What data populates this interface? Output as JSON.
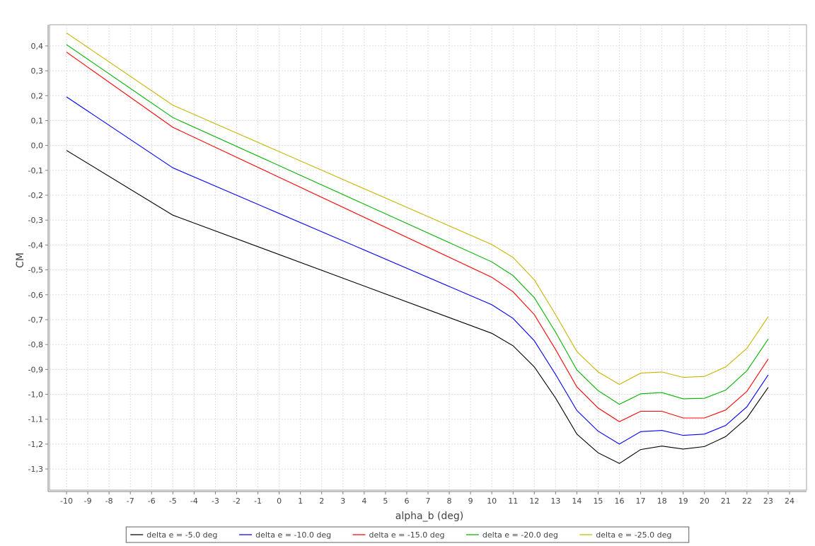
{
  "chart_data": {
    "type": "line",
    "title": "",
    "xlabel": "alpha_b (deg)",
    "ylabel": "CM",
    "xlim": [
      -10.8,
      24.8
    ],
    "ylim": [
      -1.385,
      0.485
    ],
    "grid": true,
    "legend_position": "bottom-center",
    "x_ticks": [
      "-10",
      "-9",
      "-8",
      "-7",
      "-6",
      "-5",
      "-4",
      "-3",
      "-2",
      "-1",
      "0",
      "1",
      "2",
      "3",
      "4",
      "5",
      "6",
      "7",
      "8",
      "9",
      "10",
      "11",
      "12",
      "13",
      "14",
      "15",
      "16",
      "17",
      "18",
      "19",
      "20",
      "21",
      "22",
      "23",
      "24"
    ],
    "y_ticks": [
      "0,4",
      "0,3",
      "0,2",
      "0,1",
      "0,0",
      "-0,1",
      "-0,2",
      "-0,3",
      "-0,4",
      "-0,5",
      "-0,6",
      "-0,7",
      "-0,8",
      "-0,9",
      "-1,0",
      "-1,1",
      "-1,2",
      "-1,3"
    ],
    "x": [
      -10,
      -5,
      10,
      11,
      12,
      13,
      14,
      15,
      16,
      17,
      18,
      19,
      20,
      21,
      22,
      23
    ],
    "series": [
      {
        "name": "delta e = -5.0 deg",
        "color": "#000000",
        "values": [
          -0.02,
          -0.28,
          -0.755,
          -0.805,
          -0.89,
          -1.015,
          -1.16,
          -1.235,
          -1.278,
          -1.222,
          -1.208,
          -1.22,
          -1.21,
          -1.17,
          -1.095,
          -0.972
        ]
      },
      {
        "name": "delta e = -10.0 deg",
        "color": "#0000ff",
        "values": [
          0.195,
          -0.09,
          -0.64,
          -0.695,
          -0.785,
          -0.92,
          -1.065,
          -1.148,
          -1.2,
          -1.15,
          -1.145,
          -1.165,
          -1.16,
          -1.125,
          -1.05,
          -0.922
        ]
      },
      {
        "name": "delta e = -15.0 deg",
        "color": "#ff0000",
        "values": [
          0.375,
          0.073,
          -0.53,
          -0.588,
          -0.68,
          -0.82,
          -0.97,
          -1.055,
          -1.11,
          -1.068,
          -1.068,
          -1.095,
          -1.095,
          -1.063,
          -0.988,
          -0.858
        ]
      },
      {
        "name": "delta e = -20.0 deg",
        "color": "#00b400",
        "values": [
          0.405,
          0.112,
          -0.468,
          -0.523,
          -0.612,
          -0.75,
          -0.902,
          -0.985,
          -1.04,
          -0.998,
          -0.993,
          -1.018,
          -1.016,
          -0.983,
          -0.905,
          -0.778
        ]
      },
      {
        "name": "delta e = -25.0 deg",
        "color": "#c8b400",
        "values": [
          0.452,
          0.162,
          -0.398,
          -0.45,
          -0.54,
          -0.68,
          -0.828,
          -0.91,
          -0.96,
          -0.915,
          -0.91,
          -0.932,
          -0.928,
          -0.89,
          -0.815,
          -0.688
        ]
      }
    ]
  }
}
